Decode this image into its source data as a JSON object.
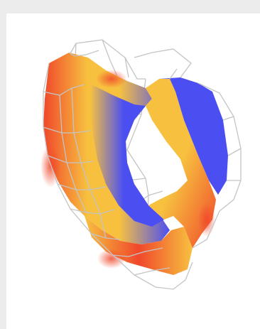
{
  "viewer": {
    "colors": {
      "background": "#ececec",
      "canvas": "#ffffff",
      "wireframe": "#c4c4c4",
      "surface_low": "#4b4ff2",
      "surface_mid": "#f7c13f",
      "surface_high": "#f0482b"
    }
  }
}
